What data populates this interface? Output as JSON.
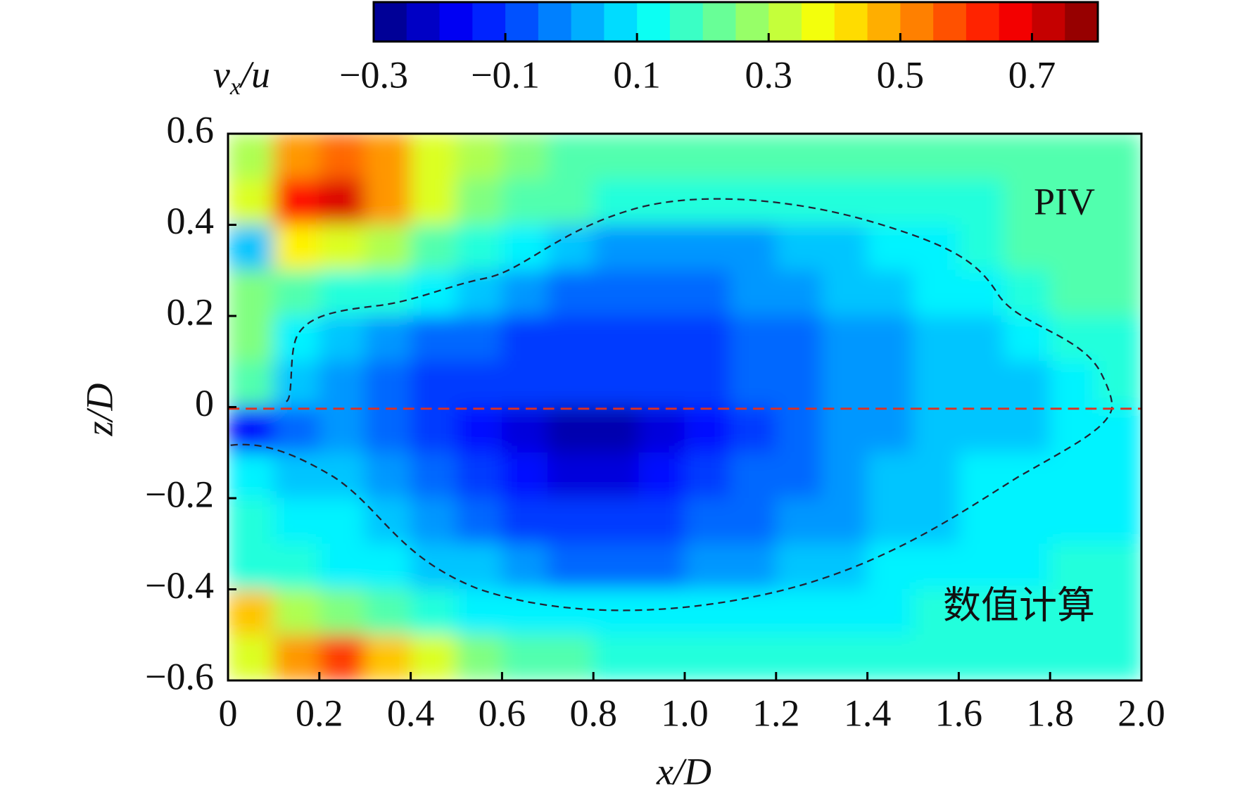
{
  "chart_data": {
    "type": "contour",
    "colormap": "jet",
    "x": [
      0.05,
      0.15,
      0.25,
      0.35,
      0.45,
      0.55,
      0.65,
      0.75,
      0.85,
      0.95,
      1.05,
      1.15,
      1.25,
      1.35,
      1.45,
      1.55,
      1.65,
      1.75,
      1.85,
      1.95
    ],
    "y": [
      0.55,
      0.45,
      0.35,
      0.25,
      0.15,
      0.05,
      -0.05,
      -0.15,
      -0.25,
      -0.35,
      -0.45,
      -0.55
    ],
    "z": [
      [
        0.3,
        0.5,
        0.55,
        0.5,
        0.35,
        0.3,
        0.25,
        0.2,
        0.2,
        0.2,
        0.2,
        0.2,
        0.2,
        0.2,
        0.2,
        0.2,
        0.2,
        0.2,
        0.2,
        0.2
      ],
      [
        0.35,
        0.65,
        0.7,
        0.5,
        0.35,
        0.25,
        0.2,
        0.2,
        0.15,
        0.15,
        0.15,
        0.15,
        0.15,
        0.15,
        0.15,
        0.15,
        0.15,
        0.2,
        0.2,
        0.2
      ],
      [
        0.05,
        0.4,
        0.35,
        0.3,
        0.2,
        0.15,
        0.1,
        0.05,
        0.0,
        0.0,
        0.0,
        0.0,
        0.05,
        0.05,
        0.1,
        0.1,
        0.15,
        0.2,
        0.2,
        0.2
      ],
      [
        0.25,
        0.2,
        0.15,
        0.15,
        0.1,
        0.05,
        0.0,
        -0.05,
        -0.05,
        -0.05,
        -0.05,
        0.0,
        0.0,
        0.05,
        0.05,
        0.1,
        0.1,
        0.15,
        0.2,
        0.2
      ],
      [
        0.25,
        0.1,
        0.05,
        0.0,
        -0.05,
        -0.05,
        -0.1,
        -0.1,
        -0.1,
        -0.1,
        -0.1,
        -0.05,
        -0.05,
        0.0,
        0.0,
        0.05,
        0.05,
        0.1,
        0.15,
        0.15
      ],
      [
        0.2,
        0.05,
        0.0,
        -0.05,
        -0.1,
        -0.1,
        -0.1,
        -0.1,
        -0.1,
        -0.1,
        -0.1,
        -0.05,
        -0.05,
        0.0,
        0.0,
        0.05,
        0.05,
        0.05,
        0.1,
        0.15
      ],
      [
        -0.15,
        -0.05,
        0.0,
        -0.05,
        -0.1,
        -0.15,
        -0.2,
        -0.25,
        -0.25,
        -0.2,
        -0.15,
        -0.1,
        -0.05,
        0.0,
        0.0,
        0.05,
        0.05,
        0.05,
        0.1,
        0.1
      ],
      [
        0.1,
        0.05,
        0.05,
        0.0,
        -0.05,
        -0.1,
        -0.15,
        -0.2,
        -0.2,
        -0.15,
        -0.1,
        -0.05,
        -0.05,
        0.0,
        0.05,
        0.05,
        0.1,
        0.1,
        0.1,
        0.1
      ],
      [
        0.15,
        0.1,
        0.1,
        0.05,
        0.0,
        -0.05,
        -0.1,
        -0.1,
        -0.1,
        -0.1,
        -0.05,
        -0.05,
        0.0,
        0.0,
        0.05,
        0.05,
        0.1,
        0.1,
        0.1,
        0.1
      ],
      [
        0.15,
        0.15,
        0.1,
        0.1,
        0.05,
        0.05,
        0.0,
        -0.05,
        -0.05,
        -0.05,
        0.0,
        0.0,
        0.05,
        0.05,
        0.1,
        0.1,
        0.1,
        0.1,
        0.15,
        0.15
      ],
      [
        0.45,
        0.3,
        0.25,
        0.2,
        0.15,
        0.1,
        0.1,
        0.1,
        0.1,
        0.1,
        0.1,
        0.1,
        0.1,
        0.1,
        0.1,
        0.15,
        0.15,
        0.15,
        0.15,
        0.15
      ],
      [
        0.35,
        0.5,
        0.6,
        0.45,
        0.35,
        0.25,
        0.2,
        0.2,
        0.15,
        0.15,
        0.15,
        0.15,
        0.15,
        0.15,
        0.15,
        0.15,
        0.15,
        0.15,
        0.15,
        0.15
      ]
    ],
    "xlim": [
      0,
      2
    ],
    "ylim": [
      -0.6,
      0.6
    ],
    "xticks": [
      0,
      0.2,
      0.4,
      0.6,
      0.8,
      {
        "value": 1,
        "label": "1.0"
      },
      1.2,
      1.4,
      1.6,
      1.8,
      {
        "value": 2,
        "label": "2.0"
      }
    ],
    "yticks": [
      {
        "value": -0.6,
        "label": "−0.6"
      },
      {
        "value": -0.4,
        "label": "−0.4"
      },
      {
        "value": -0.2,
        "label": "−0.2"
      },
      0,
      0.2,
      0.4,
      0.6
    ],
    "xlabel": "x/D",
    "ylabel": "z/D",
    "clim": [
      -0.3,
      0.8
    ],
    "cticks": [
      {
        "value": -0.3,
        "label": "−0.3"
      },
      {
        "value": -0.1,
        "label": "−0.1"
      },
      0.1,
      0.3,
      0.5,
      0.7
    ],
    "colorbar_label": [
      "v",
      "x",
      "/u"
    ],
    "annotations": [
      "PIV",
      "数值计算"
    ]
  }
}
